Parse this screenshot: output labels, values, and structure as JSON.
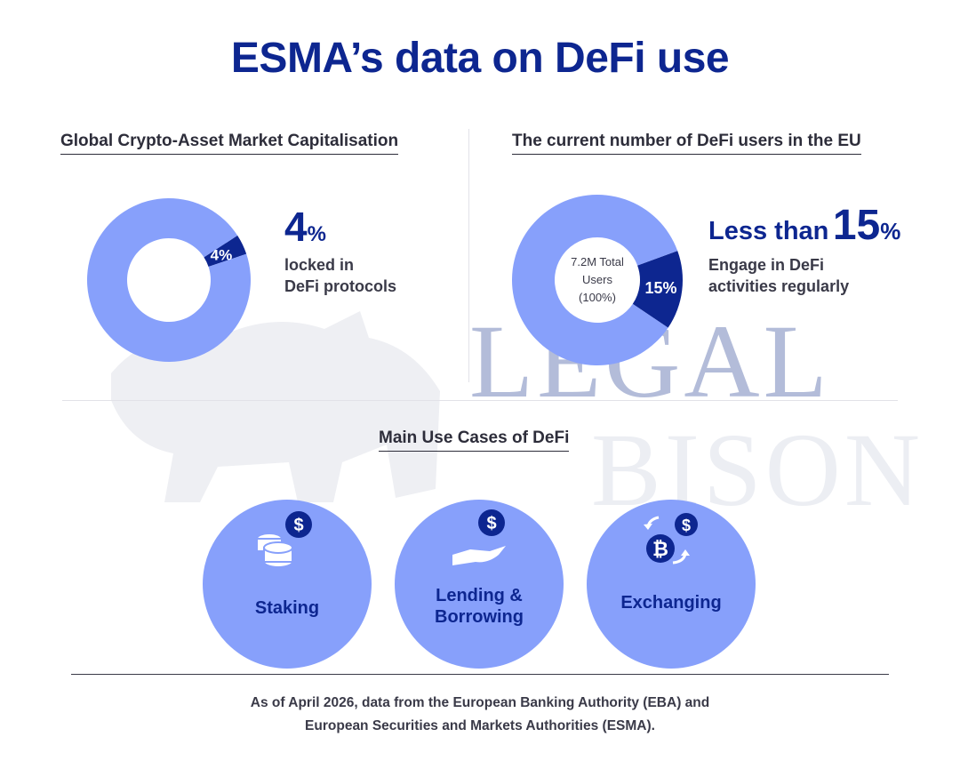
{
  "title": "ESMA’s data on DeFi use",
  "watermark": {
    "line1": "LEGAL",
    "line2": "BISON"
  },
  "colors": {
    "accent": "#0d2690",
    "light": "#87a0fb"
  },
  "left": {
    "section_title": "Global Crypto-Asset Market Capitalisation",
    "big_value": "4",
    "big_unit": "%",
    "desc_line1": "locked in",
    "desc_line2": "DeFi protocols"
  },
  "right": {
    "section_title": "The current number of DeFi users in the EU",
    "prefix": "Less than",
    "big_value": "15",
    "big_unit": "%",
    "desc_line1": "Engage in DeFi",
    "desc_line2": "activities regularly"
  },
  "use_cases": {
    "section_title": "Main Use Cases of DeFi",
    "items": [
      {
        "label_line1": "Staking",
        "label_line2": "",
        "icon": "coins-dollar-icon"
      },
      {
        "label_line1": "Lending &",
        "label_line2": "Borrowing",
        "icon": "hand-dollar-icon"
      },
      {
        "label_line1": "Exchanging",
        "label_line2": "",
        "icon": "exchange-bitcoin-dollar-icon"
      }
    ]
  },
  "footnote": {
    "line1": "As of April 2026, data from the European Banking Authority (EBA) and",
    "line2": "European Securities and Markets Authorities (ESMA)."
  },
  "chart_data": [
    {
      "type": "pie",
      "title": "Global Crypto-Asset Market Capitalisation",
      "slices": [
        {
          "label": "4%",
          "value": 4,
          "color": "#0d2690"
        },
        {
          "label": "",
          "value": 96,
          "color": "#87a0fb"
        }
      ]
    },
    {
      "type": "pie",
      "title": "The current number of DeFi users in the EU",
      "center_label": [
        "7.2M Total",
        "Users",
        "(100%)"
      ],
      "slices": [
        {
          "label": "15%",
          "value": 15,
          "color": "#0d2690"
        },
        {
          "label": "",
          "value": 85,
          "color": "#87a0fb"
        }
      ]
    }
  ]
}
